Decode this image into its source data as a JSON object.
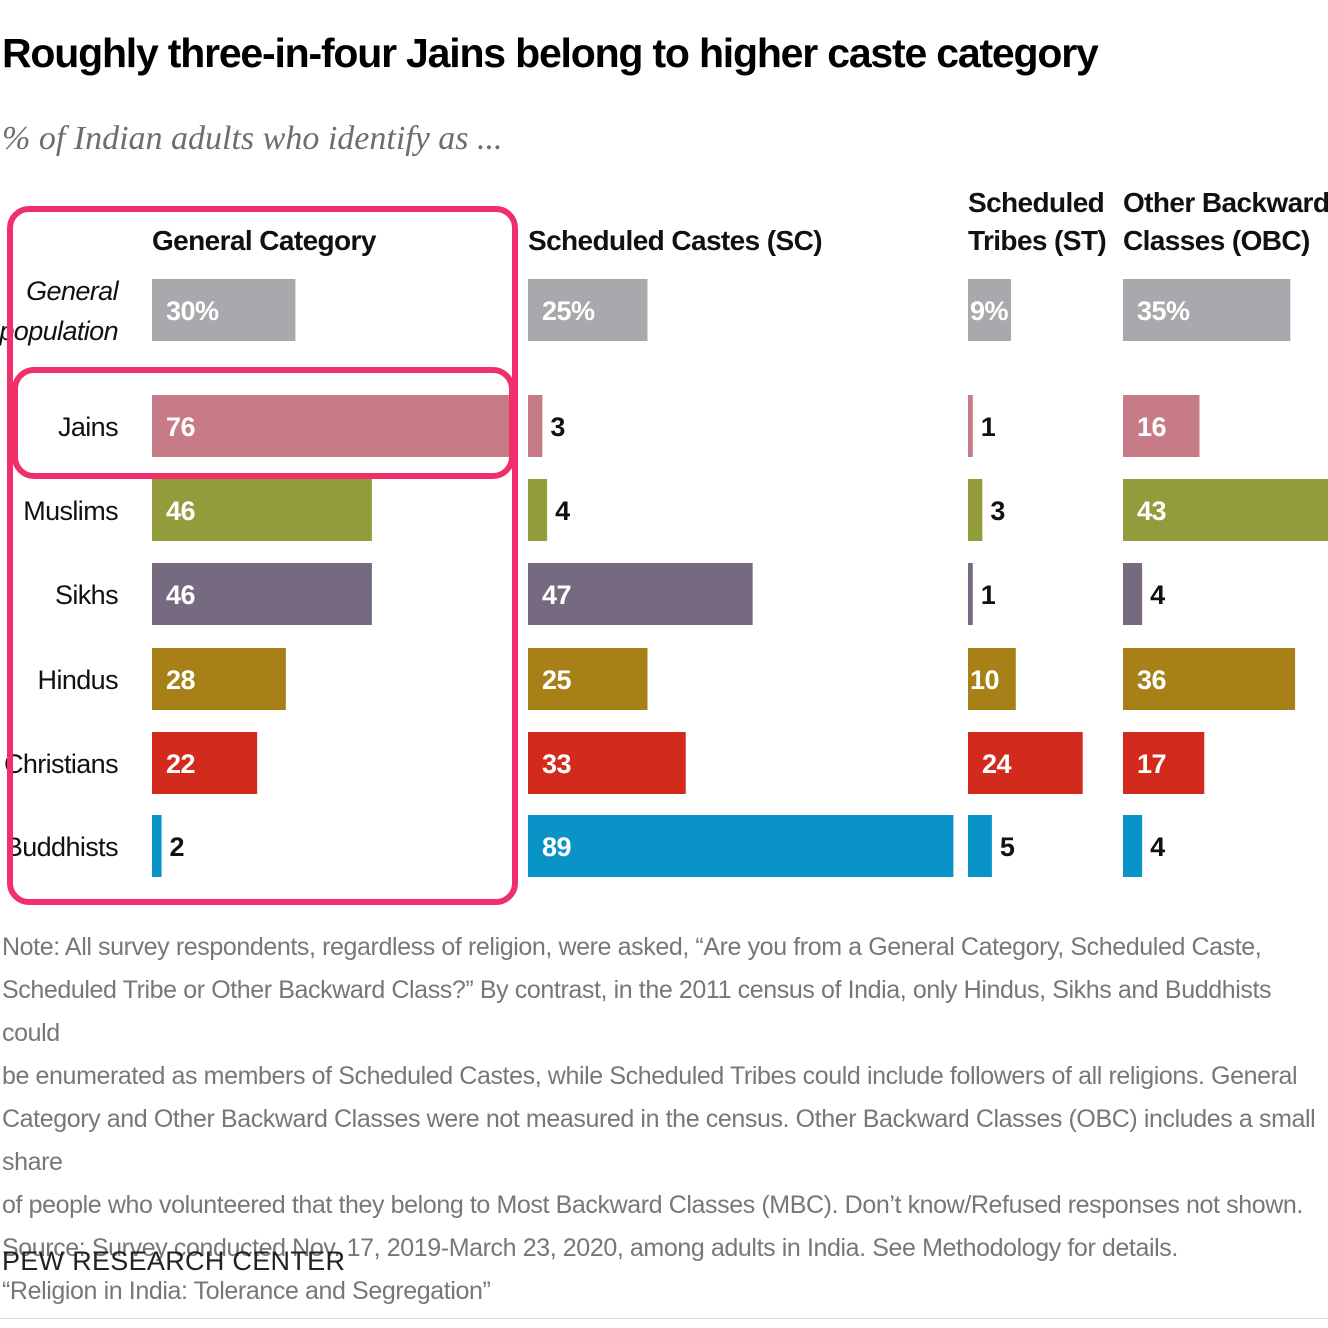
{
  "header": {
    "title": "Roughly three-in-four Jains belong to higher caste category",
    "subtitle": "% of Indian adults who identify as ..."
  },
  "chart_data": {
    "type": "bar",
    "orientation": "horizontal",
    "title": "Roughly three-in-four Jains belong to higher caste category",
    "subtitle": "% of Indian adults who identify as ...",
    "categories": [
      "General population",
      "Jains",
      "Muslims",
      "Sikhs",
      "Hindus",
      "Christians",
      "Buddhists"
    ],
    "panels": [
      {
        "name": "General Category",
        "values": [
          30,
          76,
          46,
          46,
          28,
          22,
          2
        ],
        "labels": [
          "30%",
          "76",
          "46",
          "46",
          "28",
          "22",
          "2"
        ]
      },
      {
        "name": "Scheduled Castes (SC)",
        "values": [
          25,
          3,
          4,
          47,
          25,
          33,
          89
        ],
        "labels": [
          "25%",
          "3",
          "4",
          "47",
          "25",
          "33",
          "89"
        ]
      },
      {
        "name": "Scheduled Tribes (ST)",
        "values": [
          9,
          1,
          3,
          1,
          10,
          24,
          5
        ],
        "labels": [
          "9%",
          "1",
          "3",
          "1",
          "10",
          "24",
          "5"
        ]
      },
      {
        "name": "Other Backward Classes (OBC)",
        "values": [
          35,
          16,
          43,
          4,
          36,
          17,
          4
        ],
        "labels": [
          "35%",
          "16",
          "43",
          "4",
          "36",
          "17",
          "4"
        ]
      }
    ],
    "colors": [
      "#a7a9ac",
      "#c77b86",
      "#939c3b",
      "#766a81",
      "#a78117",
      "#d22b1d",
      "#0993c7"
    ],
    "highlighted": [
      "General Category",
      "Jains"
    ],
    "highlight_color": "#f0306a"
  },
  "note": {
    "lines": [
      "Note: All survey respondents, regardless of religion, were asked, “Are you from a General Category, Scheduled Caste,",
      "Scheduled Tribe or Other Backward Class?” By contrast, in the 2011 census of India, only Hindus, Sikhs and Buddhists could",
      "be enumerated as members of Scheduled Castes, while Scheduled Tribes could include followers of all religions. General",
      "Category and Other Backward Classes were not measured in the census. Other Backward Classes (OBC) includes a small share",
      "of people who volunteered that they belong to Most Backward Classes (MBC). Don’t know/Refused responses not shown.",
      "Source: Survey conducted Nov. 17, 2019-March 23, 2020, among adults in India. See Methodology for details.",
      "“Religion in India: Tolerance and Segregation”"
    ]
  },
  "footer": {
    "brand": "PEW RESEARCH CENTER"
  }
}
